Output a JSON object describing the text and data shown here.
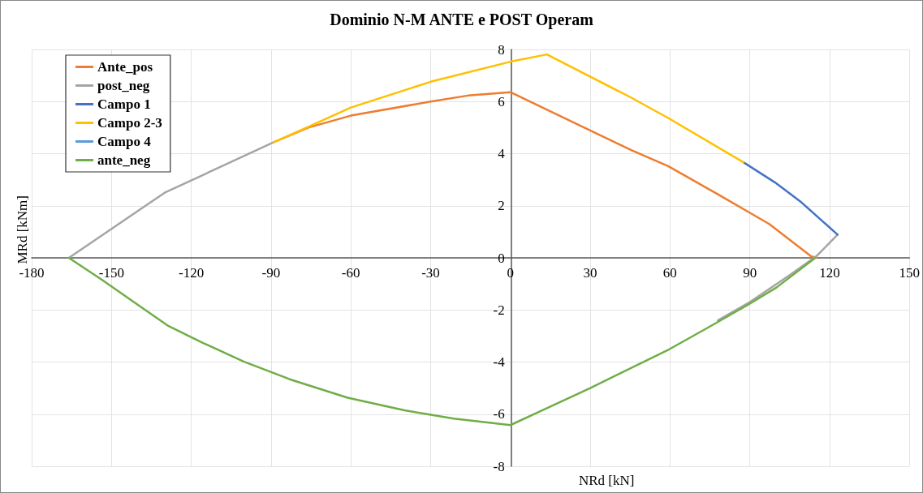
{
  "chart_data": {
    "type": "line",
    "title": "Dominio N-M ANTE e POST Operam",
    "xlabel": "NRd [kN]",
    "ylabel": "MRd [kNm]",
    "xlim": [
      -180,
      150
    ],
    "xticks": [
      -180,
      -150,
      -120,
      -90,
      -60,
      -30,
      0,
      30,
      60,
      90,
      120,
      150
    ],
    "ylim": [
      -8,
      8
    ],
    "yticks": [
      -8,
      -6,
      -4,
      -2,
      0,
      2,
      4,
      6,
      8
    ],
    "grid": true,
    "legend": "top left",
    "marker": "none",
    "line_style": "solid",
    "series": [
      {
        "name": "Ante_pos",
        "color": "#ed7d31",
        "x": [
          -89,
          -76,
          -60,
          -30,
          -16,
          0,
          13,
          45.6,
          59.3,
          78,
          89,
          97.3,
          113,
          115
        ],
        "values": [
          4.44,
          5.0,
          5.46,
          6.0,
          6.23,
          6.36,
          5.72,
          4.13,
          3.52,
          2.44,
          1.79,
          1.3,
          0.06,
          0
        ]
      },
      {
        "name": "post_neg",
        "color": "#a5a5a5",
        "x": [
          -166,
          -130,
          -104,
          -89,
          0,
          123,
          115,
          105,
          90,
          78
        ],
        "values": [
          0,
          2.5,
          3.73,
          4.44,
          null,
          0.89,
          0.06,
          -0.66,
          -1.7,
          -2.4
        ]
      },
      {
        "name": "Campo 1",
        "color": "#4472c4",
        "x": [
          87.6,
          99.4,
          109.4,
          123
        ],
        "values": [
          3.67,
          2.9,
          2.13,
          0.89
        ]
      },
      {
        "name": "Campo 2-3",
        "color": "#ffc000",
        "x": [
          -89,
          -76,
          -60,
          -30,
          0,
          13.7,
          45.6,
          59.3,
          87.6
        ],
        "values": [
          4.44,
          5.03,
          5.77,
          6.76,
          7.53,
          7.81,
          6.14,
          5.37,
          3.67
        ]
      },
      {
        "name": "Campo 4",
        "color": "#5b9bd5"
      },
      {
        "name": "ante_neg",
        "color": "#70ad47",
        "x": [
          -166,
          -153.5,
          -137.3,
          -128.5,
          -115.5,
          -100.3,
          -83,
          -61.2,
          -39.5,
          -21.3,
          0,
          30,
          59.7,
          73.2,
          89.5,
          100,
          114.6
        ],
        "values": [
          0,
          -0.85,
          -2.0,
          -2.62,
          -3.27,
          -3.98,
          -4.66,
          -5.37,
          -5.86,
          -6.17,
          -6.42,
          -5.0,
          -3.51,
          -2.74,
          -1.79,
          -1.14,
          0
        ]
      }
    ]
  }
}
